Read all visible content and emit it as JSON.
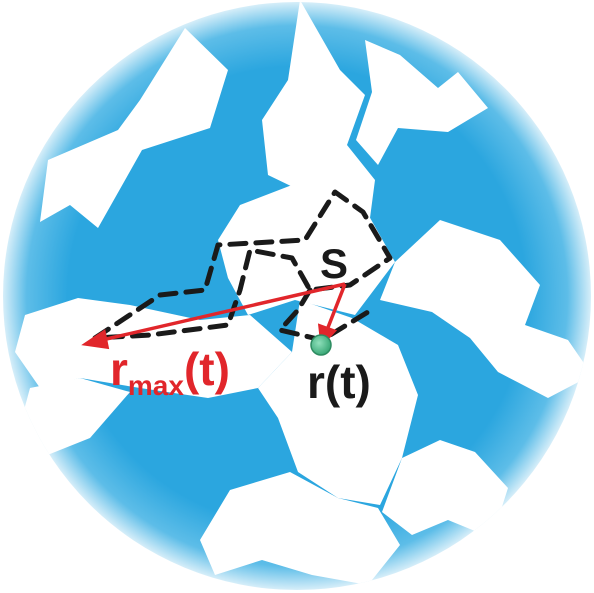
{
  "diagram": {
    "colors": {
      "sphere": "#2ba6df",
      "sphere_edge": "#c9e9f8",
      "pores": "#ffffff",
      "path": "#1a1a1a",
      "vectors": "#e1262b",
      "particle": "#4dbf8c"
    },
    "labels": {
      "origin": "S",
      "position_main": "r",
      "position_suffix": "(t)",
      "rmax_main": "r",
      "rmax_sub": "max",
      "rmax_suffix": "(t)"
    }
  }
}
